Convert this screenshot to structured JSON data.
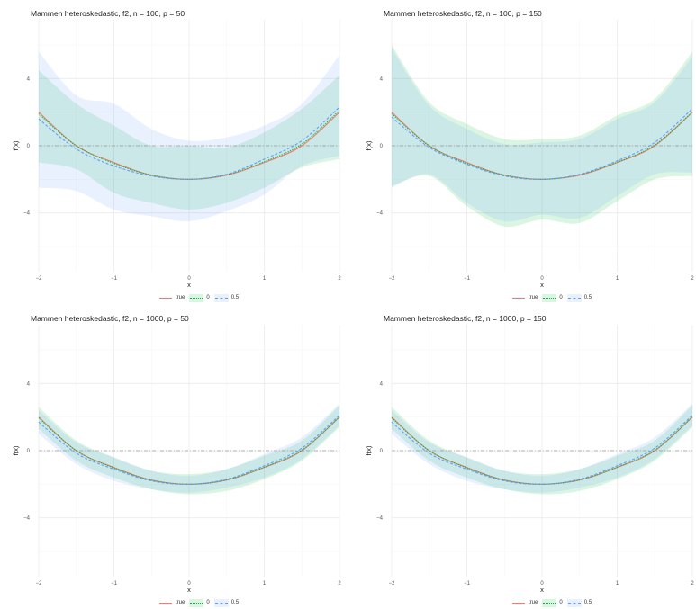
{
  "colors": {
    "true": "#F8766D",
    "p0": "#00BA38",
    "p05": "#619CFF"
  },
  "legend": [
    {
      "label": "true",
      "color": "#F8766D",
      "dash": "solid"
    },
    {
      "label": "0",
      "color": "#00BA38",
      "dash": "dotted"
    },
    {
      "label": "0.5",
      "color": "#619CFF",
      "dash": "dashed"
    }
  ],
  "chart_data": [
    {
      "type": "line",
      "title": "Mammen heteroskedastic, f2, n = 100, p = 50",
      "xlabel": "x",
      "ylabel": "f(x)",
      "xlim": [
        -2,
        2
      ],
      "ylim": [
        -7.5,
        7.5
      ],
      "xticks": [
        -2,
        -1,
        0,
        1,
        2
      ],
      "yticks": [
        -4,
        0,
        4
      ],
      "hline": 0,
      "grid": true,
      "legend_position": "bottom",
      "x": [
        -2,
        -1.5,
        -1,
        -0.5,
        0,
        0.5,
        1,
        1.5,
        2
      ],
      "series": [
        {
          "name": "true",
          "values": [
            2,
            0,
            -1,
            -1.75,
            -2,
            -1.75,
            -1,
            0,
            2
          ]
        },
        {
          "name": "0",
          "values": [
            1.9,
            0,
            -1.05,
            -1.75,
            -2,
            -1.72,
            -0.95,
            0.1,
            2.1
          ],
          "lower": [
            -1,
            -1.4,
            -2.8,
            -3.4,
            -3.8,
            -3.4,
            -2.5,
            -1.3,
            -0.8
          ],
          "upper": [
            4.5,
            2.5,
            1.2,
            0,
            0,
            -0.1,
            0.8,
            2.2,
            4.2
          ]
        },
        {
          "name": "0.5",
          "values": [
            1.6,
            -0.2,
            -1.2,
            -1.8,
            -2,
            -1.7,
            -0.8,
            0.3,
            2.3
          ],
          "lower": [
            -2.5,
            -2.7,
            -3.8,
            -4.2,
            -4.5,
            -3.9,
            -2.9,
            -1.2,
            -0.6
          ],
          "upper": [
            5.6,
            3,
            2.5,
            1,
            0.3,
            0.5,
            1.2,
            2.5,
            5.4
          ]
        }
      ]
    },
    {
      "type": "line",
      "title": "Mammen heteroskedastic, f2, n = 100, p = 150",
      "xlabel": "x",
      "ylabel": "f(x)",
      "xlim": [
        -2,
        2
      ],
      "ylim": [
        -7.5,
        7.5
      ],
      "xticks": [
        -2,
        -1,
        0,
        1,
        2
      ],
      "yticks": [
        -4,
        0,
        4
      ],
      "hline": 0,
      "grid": true,
      "legend_position": "bottom",
      "x": [
        -2,
        -1.5,
        -1,
        -0.5,
        0,
        0.5,
        1,
        1.5,
        2
      ],
      "series": [
        {
          "name": "true",
          "values": [
            2,
            0,
            -1,
            -1.75,
            -2,
            -1.75,
            -1,
            0,
            2
          ]
        },
        {
          "name": "0",
          "values": [
            1.9,
            0,
            -1.05,
            -1.75,
            -2,
            -1.72,
            -0.98,
            0.05,
            2
          ],
          "lower": [
            -2.4,
            -1.8,
            -3.6,
            -4.8,
            -4.4,
            -4.6,
            -3.3,
            -2,
            -1.8
          ],
          "upper": [
            6,
            2.6,
            1.3,
            0.4,
            0.4,
            0.6,
            1.8,
            2.8,
            5.6
          ]
        },
        {
          "name": "0.5",
          "values": [
            1.7,
            -0.1,
            -1.1,
            -1.8,
            -2,
            -1.7,
            -0.9,
            0.2,
            2.2
          ],
          "lower": [
            -2.5,
            -1.7,
            -3.4,
            -4.5,
            -4.1,
            -4.3,
            -3,
            -1.7,
            -1.6
          ],
          "upper": [
            5.8,
            2.4,
            1,
            0.1,
            0.2,
            0.4,
            1.6,
            2.6,
            5.3
          ]
        }
      ]
    },
    {
      "type": "line",
      "title": "Mammen heteroskedastic, f2, n = 1000, p = 50",
      "xlabel": "x",
      "ylabel": "f(x)",
      "xlim": [
        -2,
        2
      ],
      "ylim": [
        -7.5,
        7.5
      ],
      "xticks": [
        -2,
        -1,
        0,
        1,
        2
      ],
      "yticks": [
        -4,
        0,
        4
      ],
      "hline": 0,
      "grid": true,
      "legend_position": "bottom",
      "x": [
        -2,
        -1.5,
        -1,
        -0.5,
        0,
        0.5,
        1,
        1.5,
        2
      ],
      "series": [
        {
          "name": "true",
          "values": [
            2,
            0,
            -1,
            -1.75,
            -2,
            -1.75,
            -1,
            0,
            2
          ]
        },
        {
          "name": "0",
          "values": [
            1.95,
            0,
            -1.02,
            -1.76,
            -2,
            -1.74,
            -0.98,
            0.03,
            2
          ],
          "lower": [
            1.3,
            -0.6,
            -1.6,
            -2.3,
            -2.6,
            -2.4,
            -1.7,
            -0.6,
            1.4
          ],
          "upper": [
            2.6,
            0.6,
            -0.4,
            -1.2,
            -1.4,
            -1.1,
            -0.3,
            0.6,
            2.7
          ]
        },
        {
          "name": "0.5",
          "values": [
            1.7,
            -0.15,
            -1.1,
            -1.8,
            -2,
            -1.7,
            -0.9,
            0.15,
            2.1
          ],
          "lower": [
            1,
            -0.8,
            -1.8,
            -2.3,
            -2.5,
            -2.2,
            -1.6,
            -0.5,
            1.5
          ],
          "upper": [
            2.4,
            0.5,
            -0.4,
            -1.2,
            -1.5,
            -1.1,
            -0.2,
            0.8,
            2.8
          ]
        }
      ]
    },
    {
      "type": "line",
      "title": "Mammen heteroskedastic, f2, n = 1000, p = 150",
      "xlabel": "x",
      "ylabel": "f(x)",
      "xlim": [
        -2,
        2
      ],
      "ylim": [
        -7.5,
        7.5
      ],
      "xticks": [
        -2,
        -1,
        0,
        1,
        2
      ],
      "yticks": [
        -4,
        0,
        4
      ],
      "hline": 0,
      "grid": true,
      "legend_position": "bottom",
      "x": [
        -2,
        -1.5,
        -1,
        -0.5,
        0,
        0.5,
        1,
        1.5,
        2
      ],
      "series": [
        {
          "name": "true",
          "values": [
            2,
            0,
            -1,
            -1.75,
            -2,
            -1.75,
            -1,
            0,
            2
          ]
        },
        {
          "name": "0",
          "values": [
            1.95,
            0,
            -1.02,
            -1.76,
            -2,
            -1.74,
            -0.98,
            0.03,
            2
          ],
          "lower": [
            1.3,
            -0.6,
            -1.6,
            -2.3,
            -2.6,
            -2.4,
            -1.7,
            -0.6,
            1.4
          ],
          "upper": [
            2.6,
            0.6,
            -0.4,
            -1.2,
            -1.4,
            -1.1,
            -0.3,
            0.6,
            2.7
          ]
        },
        {
          "name": "0.5",
          "values": [
            1.7,
            -0.15,
            -1.1,
            -1.8,
            -2,
            -1.7,
            -0.9,
            0.15,
            2.1
          ],
          "lower": [
            1,
            -0.8,
            -1.8,
            -2.3,
            -2.5,
            -2.2,
            -1.6,
            -0.5,
            1.5
          ],
          "upper": [
            2.4,
            0.5,
            -0.4,
            -1.2,
            -1.5,
            -1.1,
            -0.2,
            0.8,
            2.8
          ]
        }
      ]
    }
  ]
}
